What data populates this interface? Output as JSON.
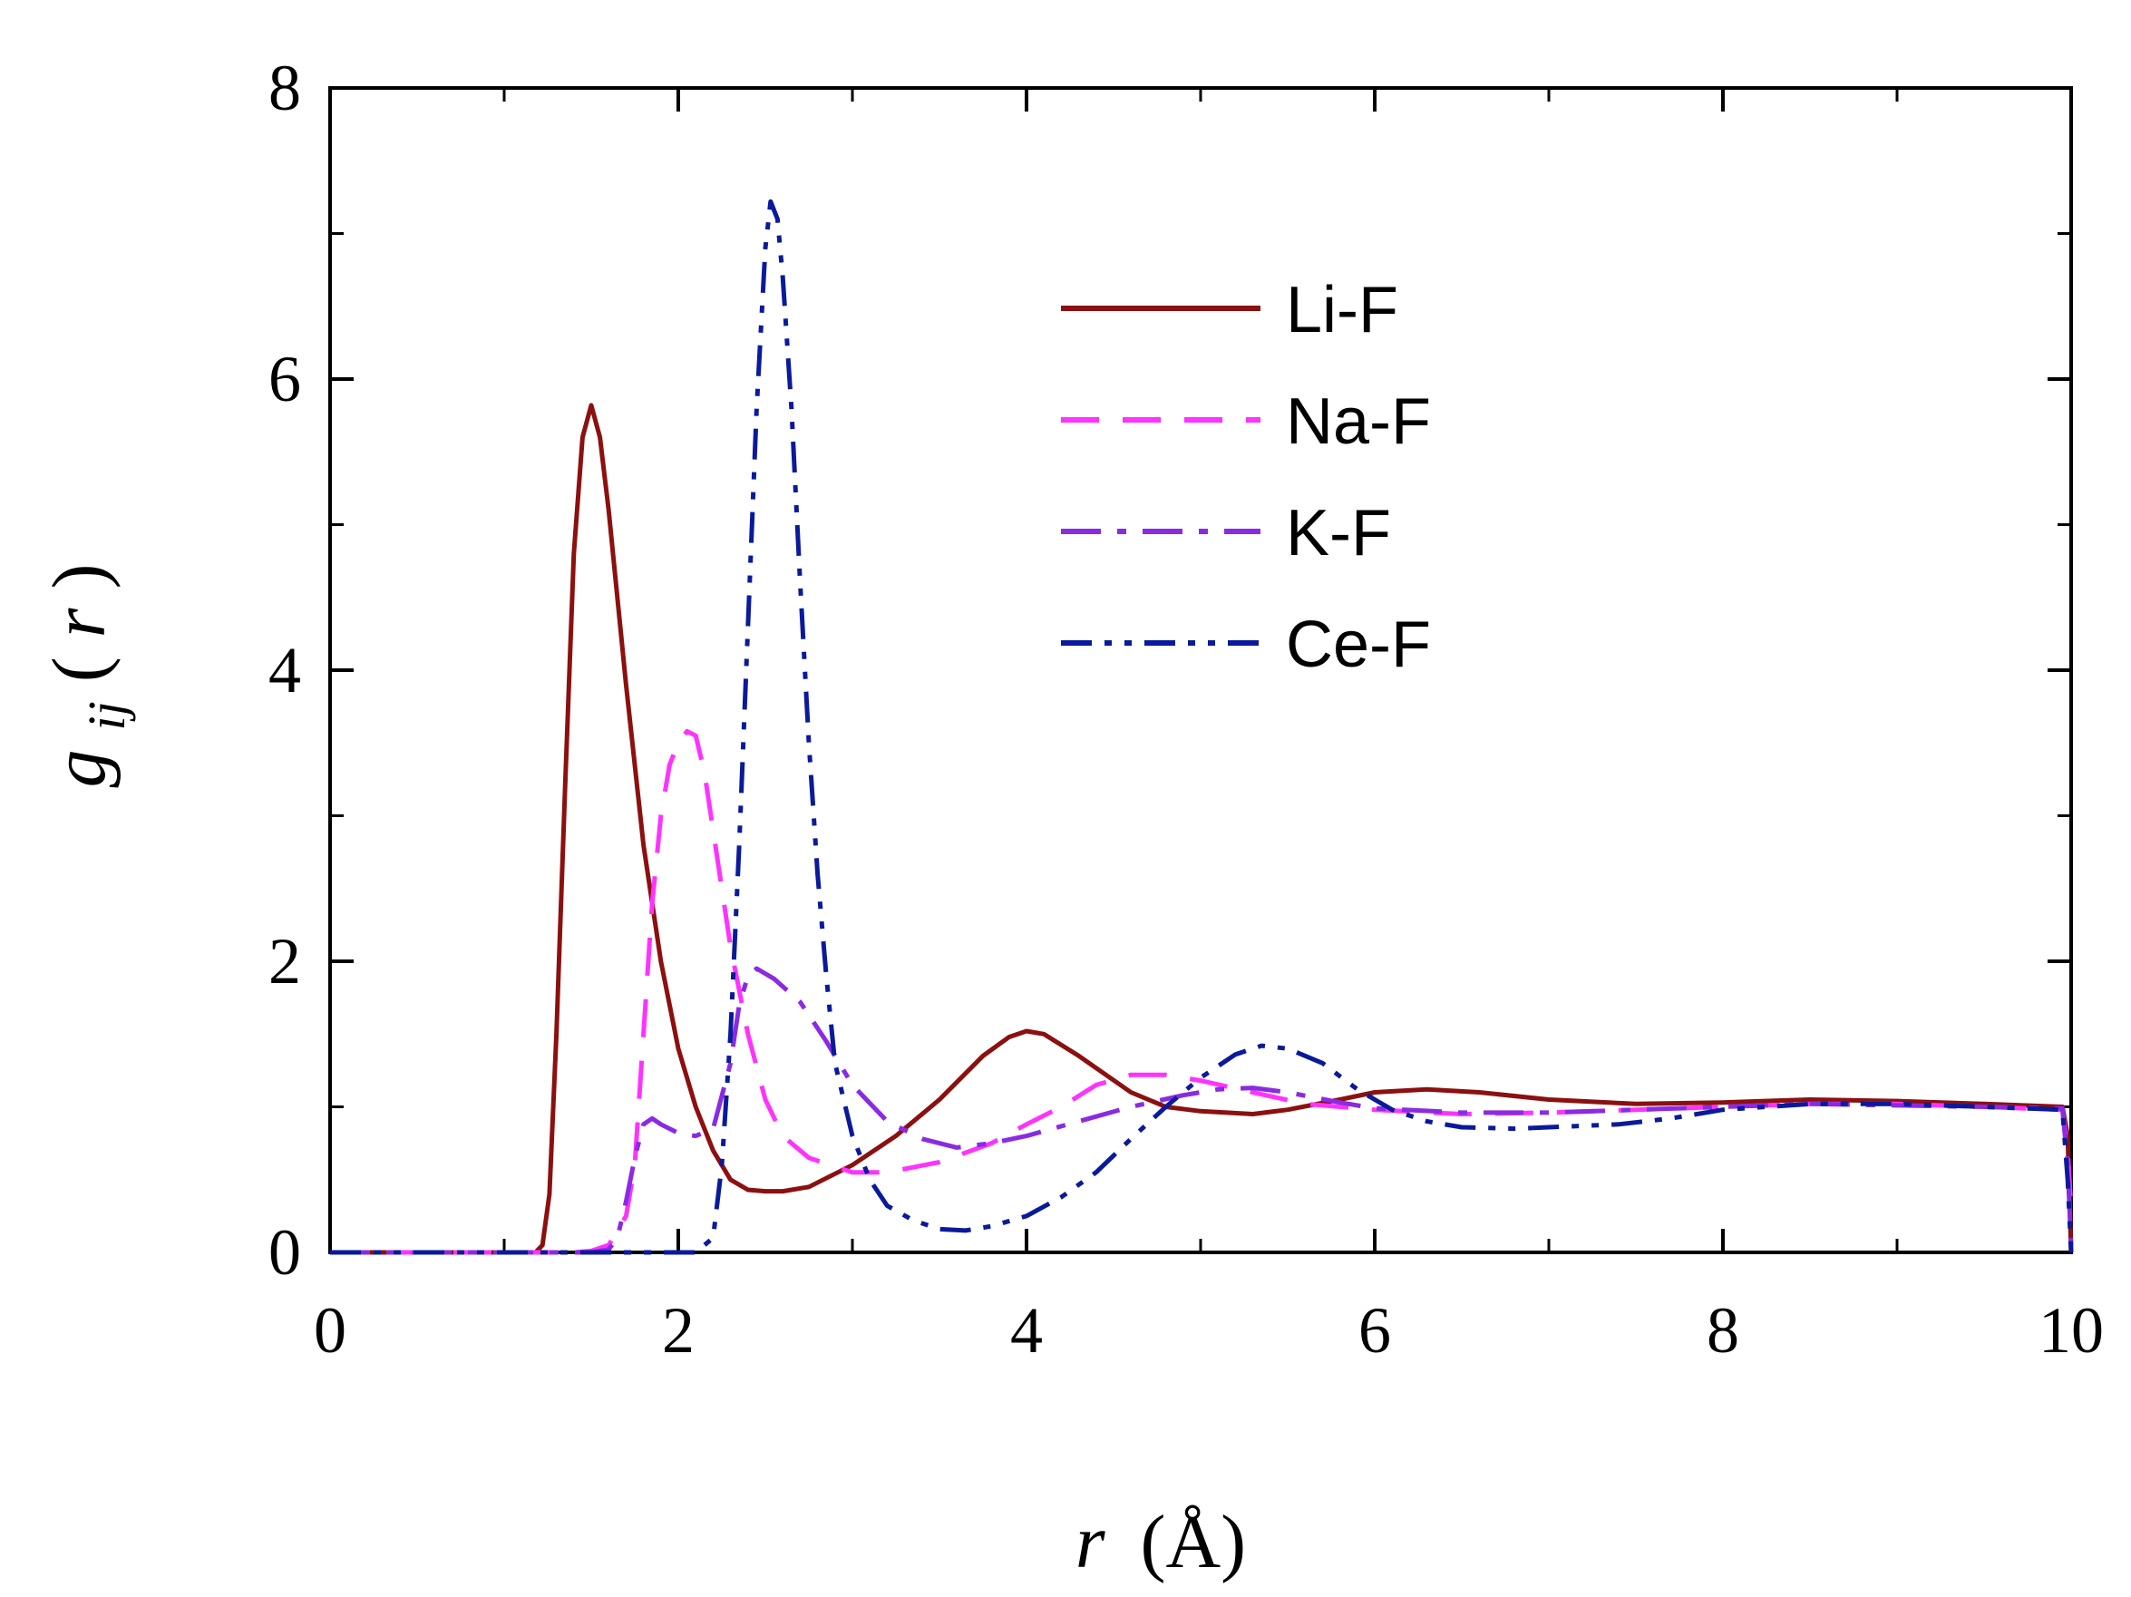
{
  "chart_data": {
    "type": "line",
    "title": "",
    "xlabel": {
      "var": "r",
      "unit": "(Å)"
    },
    "ylabel": {
      "base": "g",
      "sub": "ij",
      "arg_open": "(",
      "arg_var": "r",
      "arg_close": ")"
    },
    "xlim": [
      0,
      10
    ],
    "ylim": [
      0,
      8
    ],
    "xticks": [
      0,
      2,
      4,
      6,
      8,
      10
    ],
    "yticks": [
      0,
      2,
      4,
      6,
      8
    ],
    "xminor_ticks": [
      1,
      3,
      5,
      7,
      9
    ],
    "yminor_ticks": [
      1,
      3,
      5,
      7
    ],
    "grid": false,
    "legend_position": "upper-center",
    "series": [
      {
        "name": "Li-F",
        "color": "#8b1010",
        "style": "solid",
        "points": [
          [
            0,
            0
          ],
          [
            1.0,
            0
          ],
          [
            1.18,
            0
          ],
          [
            1.22,
            0.05
          ],
          [
            1.26,
            0.4
          ],
          [
            1.3,
            1.5
          ],
          [
            1.35,
            3.2
          ],
          [
            1.4,
            4.8
          ],
          [
            1.45,
            5.6
          ],
          [
            1.5,
            5.82
          ],
          [
            1.55,
            5.6
          ],
          [
            1.6,
            5.1
          ],
          [
            1.7,
            3.9
          ],
          [
            1.8,
            2.8
          ],
          [
            1.9,
            2.0
          ],
          [
            2.0,
            1.4
          ],
          [
            2.1,
            1.0
          ],
          [
            2.2,
            0.7
          ],
          [
            2.3,
            0.5
          ],
          [
            2.4,
            0.43
          ],
          [
            2.5,
            0.42
          ],
          [
            2.6,
            0.42
          ],
          [
            2.75,
            0.45
          ],
          [
            3.0,
            0.6
          ],
          [
            3.25,
            0.8
          ],
          [
            3.5,
            1.05
          ],
          [
            3.75,
            1.35
          ],
          [
            3.9,
            1.48
          ],
          [
            4.0,
            1.52
          ],
          [
            4.1,
            1.5
          ],
          [
            4.3,
            1.35
          ],
          [
            4.6,
            1.1
          ],
          [
            4.8,
            1.0
          ],
          [
            5.0,
            0.97
          ],
          [
            5.3,
            0.95
          ],
          [
            5.5,
            0.98
          ],
          [
            5.8,
            1.05
          ],
          [
            6.0,
            1.1
          ],
          [
            6.3,
            1.12
          ],
          [
            6.6,
            1.1
          ],
          [
            7.0,
            1.05
          ],
          [
            7.5,
            1.02
          ],
          [
            8.0,
            1.03
          ],
          [
            8.5,
            1.05
          ],
          [
            9.0,
            1.04
          ],
          [
            9.5,
            1.02
          ],
          [
            9.95,
            1.0
          ],
          [
            9.98,
            0.8
          ],
          [
            10.0,
            0
          ]
        ]
      },
      {
        "name": "Na-F",
        "color": "#ff33ff",
        "style": "dashed",
        "points": [
          [
            0,
            0
          ],
          [
            1.4,
            0
          ],
          [
            1.5,
            0.01
          ],
          [
            1.6,
            0.05
          ],
          [
            1.7,
            0.25
          ],
          [
            1.75,
            0.6
          ],
          [
            1.8,
            1.5
          ],
          [
            1.85,
            2.4
          ],
          [
            1.9,
            3.0
          ],
          [
            1.95,
            3.35
          ],
          [
            2.0,
            3.5
          ],
          [
            2.05,
            3.58
          ],
          [
            2.1,
            3.55
          ],
          [
            2.15,
            3.3
          ],
          [
            2.2,
            2.9
          ],
          [
            2.3,
            2.1
          ],
          [
            2.4,
            1.5
          ],
          [
            2.5,
            1.05
          ],
          [
            2.6,
            0.8
          ],
          [
            2.75,
            0.65
          ],
          [
            3.0,
            0.55
          ],
          [
            3.2,
            0.55
          ],
          [
            3.5,
            0.62
          ],
          [
            3.8,
            0.75
          ],
          [
            4.0,
            0.88
          ],
          [
            4.2,
            1.0
          ],
          [
            4.4,
            1.15
          ],
          [
            4.6,
            1.22
          ],
          [
            4.8,
            1.22
          ],
          [
            5.0,
            1.18
          ],
          [
            5.3,
            1.1
          ],
          [
            5.6,
            1.02
          ],
          [
            6.0,
            0.98
          ],
          [
            6.5,
            0.95
          ],
          [
            7.0,
            0.96
          ],
          [
            7.5,
            0.98
          ],
          [
            8.0,
            1.0
          ],
          [
            8.5,
            1.02
          ],
          [
            9.0,
            1.02
          ],
          [
            9.5,
            1.0
          ],
          [
            9.95,
            0.98
          ],
          [
            9.98,
            0.7
          ],
          [
            10.0,
            0.3
          ]
        ]
      },
      {
        "name": "K-F",
        "color": "#8a2be2",
        "style": "dashdot",
        "points": [
          [
            0,
            0
          ],
          [
            1.5,
            0
          ],
          [
            1.6,
            0.02
          ],
          [
            1.65,
            0.1
          ],
          [
            1.7,
            0.35
          ],
          [
            1.75,
            0.65
          ],
          [
            1.8,
            0.88
          ],
          [
            1.85,
            0.92
          ],
          [
            1.9,
            0.88
          ],
          [
            2.0,
            0.82
          ],
          [
            2.1,
            0.8
          ],
          [
            2.2,
            0.85
          ],
          [
            2.3,
            1.3
          ],
          [
            2.35,
            1.7
          ],
          [
            2.4,
            1.9
          ],
          [
            2.45,
            1.95
          ],
          [
            2.55,
            1.88
          ],
          [
            2.7,
            1.72
          ],
          [
            2.85,
            1.45
          ],
          [
            3.0,
            1.15
          ],
          [
            3.2,
            0.9
          ],
          [
            3.4,
            0.78
          ],
          [
            3.6,
            0.72
          ],
          [
            3.8,
            0.75
          ],
          [
            4.0,
            0.8
          ],
          [
            4.3,
            0.9
          ],
          [
            4.6,
            1.0
          ],
          [
            4.9,
            1.08
          ],
          [
            5.1,
            1.12
          ],
          [
            5.3,
            1.13
          ],
          [
            5.5,
            1.1
          ],
          [
            5.8,
            1.03
          ],
          [
            6.0,
            0.99
          ],
          [
            6.5,
            0.96
          ],
          [
            7.0,
            0.96
          ],
          [
            7.5,
            0.98
          ],
          [
            8.0,
            1.0
          ],
          [
            8.5,
            1.02
          ],
          [
            9.0,
            1.01
          ],
          [
            9.5,
            1.0
          ],
          [
            9.95,
            0.99
          ],
          [
            9.98,
            0.6
          ],
          [
            10.0,
            0.05
          ]
        ]
      },
      {
        "name": "Ce-F",
        "color": "#0a1a9a",
        "style": "dashdotdot",
        "points": [
          [
            0,
            0
          ],
          [
            2.1,
            0
          ],
          [
            2.2,
            0.1
          ],
          [
            2.25,
            0.6
          ],
          [
            2.3,
            1.5
          ],
          [
            2.35,
            2.8
          ],
          [
            2.4,
            4.3
          ],
          [
            2.45,
            5.8
          ],
          [
            2.5,
            6.9
          ],
          [
            2.53,
            7.22
          ],
          [
            2.57,
            7.1
          ],
          [
            2.6,
            6.7
          ],
          [
            2.65,
            5.8
          ],
          [
            2.7,
            4.6
          ],
          [
            2.75,
            3.5
          ],
          [
            2.8,
            2.6
          ],
          [
            2.85,
            1.9
          ],
          [
            2.9,
            1.3
          ],
          [
            3.0,
            0.8
          ],
          [
            3.1,
            0.5
          ],
          [
            3.2,
            0.32
          ],
          [
            3.35,
            0.22
          ],
          [
            3.5,
            0.16
          ],
          [
            3.65,
            0.15
          ],
          [
            3.8,
            0.18
          ],
          [
            4.0,
            0.25
          ],
          [
            4.2,
            0.38
          ],
          [
            4.4,
            0.55
          ],
          [
            4.6,
            0.78
          ],
          [
            4.8,
            1.0
          ],
          [
            5.0,
            1.2
          ],
          [
            5.2,
            1.36
          ],
          [
            5.35,
            1.42
          ],
          [
            5.5,
            1.4
          ],
          [
            5.7,
            1.3
          ],
          [
            5.9,
            1.12
          ],
          [
            6.1,
            0.98
          ],
          [
            6.3,
            0.9
          ],
          [
            6.5,
            0.86
          ],
          [
            6.8,
            0.85
          ],
          [
            7.0,
            0.86
          ],
          [
            7.4,
            0.88
          ],
          [
            7.7,
            0.92
          ],
          [
            8.0,
            0.98
          ],
          [
            8.5,
            1.02
          ],
          [
            9.0,
            1.02
          ],
          [
            9.5,
            1.0
          ],
          [
            9.95,
            0.98
          ],
          [
            9.98,
            0.5
          ],
          [
            10.0,
            0.0
          ]
        ]
      }
    ]
  }
}
